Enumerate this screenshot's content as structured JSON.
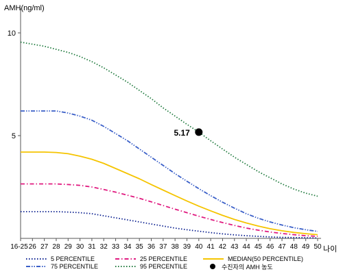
{
  "chart_data": {
    "type": "line",
    "ylabel": "AMH(ng/ml)",
    "xlabel": "나이",
    "x_ticks": [
      "16-25",
      "26",
      "27",
      "28",
      "29",
      "30",
      "31",
      "32",
      "33",
      "34",
      "35",
      "36",
      "37",
      "38",
      "39",
      "40",
      "41",
      "42",
      "43",
      "44",
      "45",
      "46",
      "47",
      "48",
      "49",
      "50"
    ],
    "y_ticks": [
      5,
      10
    ],
    "ylim": [
      0,
      11.2
    ],
    "grid": false,
    "series": [
      {
        "name": "5 PERCENTILE",
        "color": "#0a1f8f",
        "style": "dotted",
        "values": [
          1.3,
          1.3,
          1.3,
          1.3,
          1.28,
          1.25,
          1.2,
          1.1,
          1.0,
          0.9,
          0.8,
          0.7,
          0.6,
          0.5,
          0.42,
          0.35,
          0.28,
          0.22,
          0.17,
          0.13,
          0.1,
          0.07,
          0.05,
          0.04,
          0.03,
          0.02
        ]
      },
      {
        "name": "25 PERCENTILE",
        "color": "#e0197f",
        "style": "dashdot",
        "values": [
          2.65,
          2.65,
          2.65,
          2.65,
          2.62,
          2.58,
          2.5,
          2.38,
          2.25,
          2.1,
          1.95,
          1.78,
          1.6,
          1.42,
          1.25,
          1.08,
          0.92,
          0.77,
          0.63,
          0.5,
          0.4,
          0.31,
          0.24,
          0.18,
          0.13,
          0.1
        ]
      },
      {
        "name": "MEDIAN(50 PERCENTILE)",
        "color": "#f5c400",
        "style": "solid",
        "values": [
          4.2,
          4.2,
          4.2,
          4.18,
          4.12,
          4.0,
          3.85,
          3.65,
          3.4,
          3.15,
          2.9,
          2.62,
          2.35,
          2.08,
          1.82,
          1.57,
          1.34,
          1.12,
          0.92,
          0.75,
          0.6,
          0.47,
          0.37,
          0.29,
          0.23,
          0.18
        ]
      },
      {
        "name": "75 PERCENTILE",
        "color": "#3a5fc8",
        "style": "dashdotdot",
        "values": [
          6.2,
          6.2,
          6.2,
          6.2,
          6.1,
          5.95,
          5.75,
          5.45,
          5.1,
          4.75,
          4.35,
          3.95,
          3.55,
          3.15,
          2.78,
          2.42,
          2.08,
          1.76,
          1.47,
          1.2,
          0.98,
          0.8,
          0.65,
          0.52,
          0.42,
          0.34
        ]
      },
      {
        "name": "95 PERCENTILE",
        "color": "#1f7a3d",
        "style": "dotted",
        "values": [
          9.55,
          9.45,
          9.35,
          9.2,
          9.05,
          8.85,
          8.6,
          8.3,
          7.95,
          7.6,
          7.2,
          6.8,
          6.35,
          5.95,
          5.55,
          5.17,
          4.75,
          4.35,
          3.95,
          3.6,
          3.25,
          2.95,
          2.65,
          2.4,
          2.2,
          2.05
        ]
      }
    ],
    "marker": {
      "label": "수진자의 AMH 농도",
      "x": "40",
      "value": 5.17,
      "value_label": "5.17",
      "color": "#000000"
    }
  }
}
